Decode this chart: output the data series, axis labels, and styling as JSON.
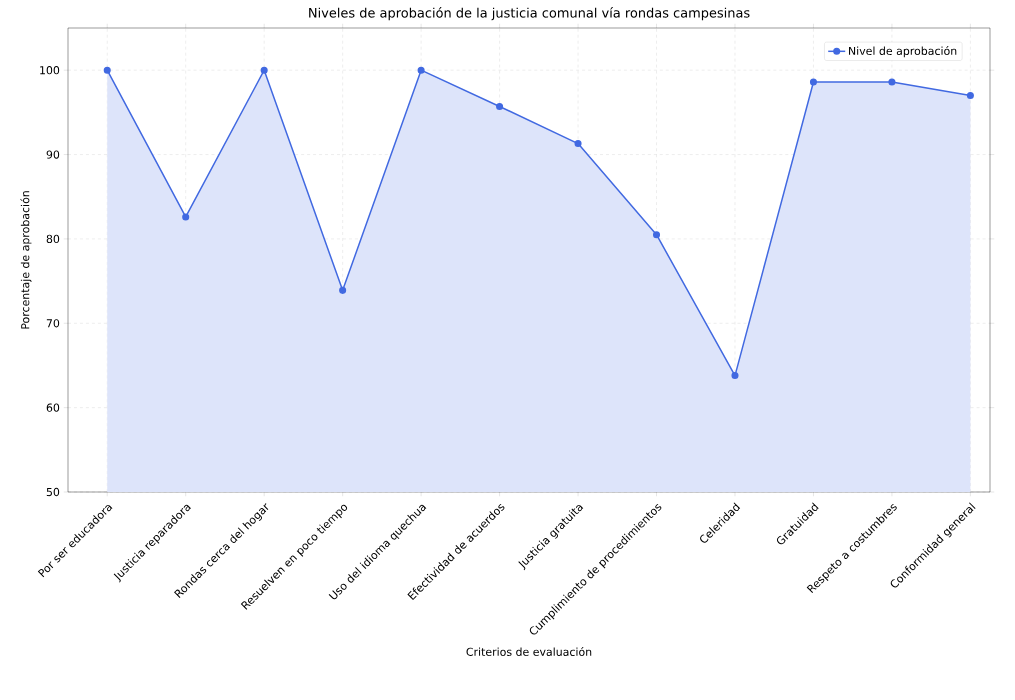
{
  "chart_data": {
    "type": "area",
    "title": "Niveles de aprobación de la justicia comunal vía rondas campesinas",
    "xlabel": "Criterios de evaluación",
    "ylabel": "Porcentaje de aprobación",
    "categories": [
      "Por ser educadora",
      "Justicia reparadora",
      "Rondas cerca del hogar",
      "Resuelven en poco tiempo",
      "Uso del idioma quechua",
      "Efectividad de acuerdos",
      "Justicia gratuita",
      "Cumplimiento de procedimientos",
      "Celeridad",
      "Gratuidad",
      "Respeto a costumbres",
      "Conformidad general"
    ],
    "series": [
      {
        "name": "Nivel de aprobación",
        "color": "#4169e1",
        "values": [
          100,
          82.6,
          100,
          73.9,
          100,
          95.7,
          91.3,
          80.5,
          63.8,
          98.6,
          98.6,
          97.0
        ]
      }
    ],
    "ylim": [
      50,
      105
    ],
    "yticks": [
      50,
      60,
      70,
      80,
      90,
      100
    ],
    "grid": true,
    "legend": "top right",
    "marker": "circle",
    "line_style": "solid"
  }
}
